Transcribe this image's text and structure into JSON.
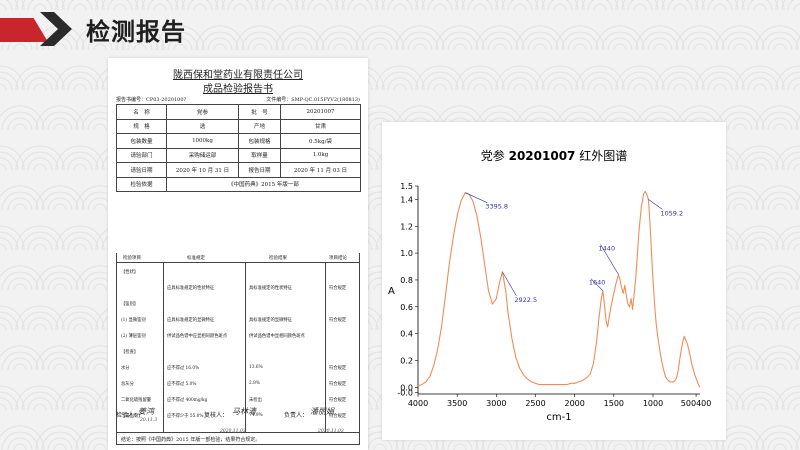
{
  "header": {
    "title": "检测报告"
  },
  "report": {
    "company": "陇西保和堂药业有限责任公司",
    "title": "成品检验报告书",
    "report_no": "报告书编号：CP03-2020100?",
    "file_no": "文件编号：SMP-QC.015FYV2(180813)",
    "rows": [
      [
        "名　称",
        "党参",
        "批　号",
        "20201007"
      ],
      [
        "规　格",
        "选",
        "产地",
        "甘肃"
      ],
      [
        "包装数量",
        "1000kg",
        "包装规格",
        "0.5kg/袋"
      ],
      [
        "请验部门",
        "采购储运部",
        "取样量",
        "1.0kg"
      ],
      [
        "请验日期",
        "2020 年 10 月 31 日",
        "报告日期",
        "2020 年 11 月 03 日"
      ]
    ],
    "basis_label": "检验依据",
    "basis_value": "《中国药典》2015 年版一部",
    "test_head": [
      "检验项目",
      "标准规定",
      "检验结果",
      "项目结论"
    ],
    "test_rows": [
      [
        "【性状】",
        "",
        "",
        ""
      ],
      [
        "",
        "应具标准规定的性状特征",
        "具标准规定的性状特征",
        "符合规定"
      ],
      [
        "【鉴别】",
        "",
        "",
        ""
      ],
      [
        "(1) 显微鉴别",
        "应具标准规定的显微特征",
        "具标准规定的显微特征",
        "符合规定"
      ],
      [
        "(2) 薄层鉴别",
        "供试品色谱中应显相同颜色斑点",
        "供试品色谱中显相同颜色斑点",
        ""
      ],
      [
        "【检查】",
        "",
        "",
        ""
      ],
      [
        "水分",
        "应不得过 16.0%",
        "13.6%",
        "符合规定"
      ],
      [
        "总灰分",
        "应不得过 5.0%",
        "2.8%",
        "符合规定"
      ],
      [
        "二氧化硫残留量",
        "应不得过 400mg/kg",
        "未检出",
        "符合规定"
      ],
      [
        "【浸出物】",
        "应不得少于 55.0%",
        "74.9%",
        "符合规定"
      ]
    ],
    "remark": "结论：按照《中国药典》2015 年版一部检验，结果符合规定。",
    "signatures": [
      {
        "role": "检验人：",
        "name": "姜鸿",
        "date": "20.11.3"
      },
      {
        "role": "复核人：",
        "name": "马林清",
        "date": "2020.11.03"
      },
      {
        "role": "负责人：",
        "name": "潘丽娟",
        "date": "2020.11.03"
      }
    ]
  },
  "chart_data": {
    "type": "line",
    "title_prefix": "党参 ",
    "title_batch": "20201007",
    "title_suffix": " 红外图谱",
    "xlabel": "cm-1",
    "ylabel": "A",
    "xlim": [
      4000,
      400
    ],
    "ylim": [
      -0.05,
      1.5
    ],
    "x_ticks": [
      "4000",
      "3500",
      "3000",
      "2500",
      "2000",
      "1500",
      "1000",
      "500400"
    ],
    "y_ticks": [
      "1.5",
      "1.4",
      "1.2",
      "1.0",
      "0.8",
      "0.6",
      "0.4",
      "0.2",
      "0.0",
      "-0.0"
    ],
    "series": [
      {
        "color": "#f08c5a",
        "x": [
          4000,
          3950,
          3900,
          3850,
          3800,
          3750,
          3700,
          3650,
          3600,
          3550,
          3500,
          3450,
          3395.8,
          3350,
          3300,
          3250,
          3200,
          3150,
          3100,
          3050,
          3000,
          2960,
          2922.5,
          2880,
          2850,
          2800,
          2750,
          2700,
          2650,
          2600,
          2550,
          2500,
          2450,
          2400,
          2350,
          2300,
          2250,
          2200,
          2150,
          2100,
          2050,
          2000,
          1950,
          1900,
          1850,
          1800,
          1760,
          1720,
          1690,
          1660,
          1640,
          1620,
          1600,
          1580,
          1560,
          1530,
          1500,
          1470,
          1440,
          1420,
          1400,
          1380,
          1360,
          1340,
          1320,
          1300,
          1280,
          1260,
          1240,
          1220,
          1200,
          1180,
          1150,
          1120,
          1100,
          1080,
          1059.2,
          1040,
          1020,
          1000,
          980,
          960,
          940,
          920,
          900,
          880,
          860,
          840,
          820,
          800,
          780,
          760,
          740,
          720,
          700,
          680,
          650,
          620,
          600,
          560,
          520,
          500,
          470,
          440,
          420,
          400
        ],
        "y": [
          0.01,
          0.02,
          0.04,
          0.08,
          0.16,
          0.28,
          0.45,
          0.68,
          0.92,
          1.12,
          1.28,
          1.39,
          1.45,
          1.44,
          1.39,
          1.28,
          1.12,
          0.92,
          0.72,
          0.62,
          0.66,
          0.78,
          0.86,
          0.72,
          0.55,
          0.36,
          0.22,
          0.14,
          0.09,
          0.06,
          0.04,
          0.03,
          0.02,
          0.02,
          0.02,
          0.02,
          0.02,
          0.02,
          0.02,
          0.02,
          0.03,
          0.03,
          0.04,
          0.05,
          0.07,
          0.1,
          0.18,
          0.34,
          0.52,
          0.66,
          0.72,
          0.62,
          0.5,
          0.45,
          0.52,
          0.62,
          0.7,
          0.78,
          0.84,
          0.8,
          0.74,
          0.7,
          0.76,
          0.68,
          0.62,
          0.6,
          0.66,
          0.58,
          0.7,
          0.82,
          0.98,
          1.16,
          1.34,
          1.44,
          1.46,
          1.44,
          1.4,
          1.24,
          1.02,
          0.8,
          0.62,
          0.48,
          0.38,
          0.3,
          0.23,
          0.17,
          0.12,
          0.08,
          0.06,
          0.05,
          0.04,
          0.04,
          0.04,
          0.05,
          0.07,
          0.12,
          0.24,
          0.34,
          0.38,
          0.32,
          0.22,
          0.16,
          0.1,
          0.05,
          0.02,
          0.0
        ]
      }
    ],
    "annotations": [
      {
        "label": "3395.8",
        "x": 3395.8,
        "y": 1.45
      },
      {
        "label": "2922.5",
        "x": 2922.5,
        "y": 0.86
      },
      {
        "label": "1640",
        "x": 1640,
        "y": 0.72
      },
      {
        "label": "1440",
        "x": 1440,
        "y": 0.84
      },
      {
        "label": "1059.2",
        "x": 1059.2,
        "y": 1.4
      }
    ],
    "grid": false,
    "legend": "none"
  }
}
